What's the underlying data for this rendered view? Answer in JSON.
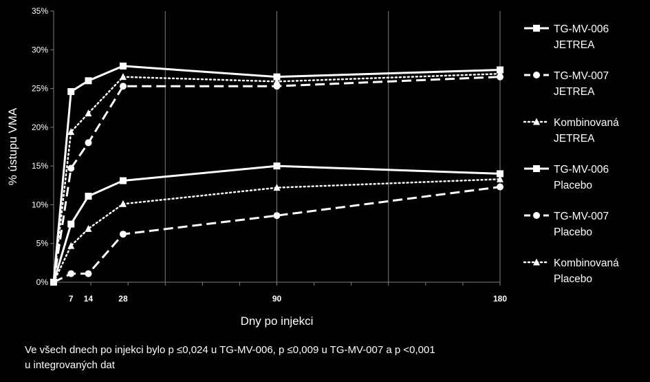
{
  "chart_data": {
    "type": "line",
    "xlabel": "Dny po injekci",
    "ylabel": "% ústupu VMA",
    "x_ticks": [
      7,
      14,
      28,
      90,
      180
    ],
    "xlim": [
      0,
      180
    ],
    "ylim": [
      0,
      35
    ],
    "y_ticks": [
      "0%",
      "5%",
      "10%",
      "15%",
      "20%",
      "25%",
      "30%",
      "35%"
    ],
    "grid": "vertical",
    "legend": "right",
    "series": [
      {
        "name": "TG-MV-006 JETREA",
        "line1": "TG-MV-006",
        "line2": "JETREA",
        "style": "solid",
        "marker": "square",
        "points": [
          [
            0,
            0
          ],
          [
            7,
            24.6
          ],
          [
            14,
            26.0
          ],
          [
            28,
            27.9
          ],
          [
            90,
            26.5
          ],
          [
            180,
            27.4
          ]
        ]
      },
      {
        "name": "TG-MV-007 JETREA",
        "line1": "TG-MV-007",
        "line2": "JETREA",
        "style": "dashed",
        "marker": "circle",
        "points": [
          [
            0,
            0
          ],
          [
            7,
            14.7
          ],
          [
            14,
            18.0
          ],
          [
            28,
            25.3
          ],
          [
            90,
            25.3
          ],
          [
            180,
            26.5
          ]
        ]
      },
      {
        "name": "Kombinovaná JETREA",
        "line1": "Kombinovaná",
        "line2": "JETREA",
        "style": "dotted",
        "marker": "triangle",
        "points": [
          [
            0,
            0
          ],
          [
            7,
            19.4
          ],
          [
            14,
            21.8
          ],
          [
            28,
            26.5
          ],
          [
            90,
            25.9
          ],
          [
            180,
            26.9
          ]
        ]
      },
      {
        "name": "TG-MV-006 Placebo",
        "line1": "TG-MV-006",
        "line2": "Placebo",
        "style": "solid",
        "marker": "square",
        "points": [
          [
            0,
            0
          ],
          [
            7,
            7.5
          ],
          [
            14,
            11.1
          ],
          [
            28,
            13.1
          ],
          [
            90,
            15.0
          ],
          [
            180,
            14.0
          ]
        ]
      },
      {
        "name": "TG-MV-007 Placebo",
        "line1": "TG-MV-007",
        "line2": "Placebo",
        "style": "dashed",
        "marker": "circle",
        "points": [
          [
            0,
            0
          ],
          [
            7,
            1.1
          ],
          [
            14,
            1.1
          ],
          [
            28,
            6.2
          ],
          [
            90,
            8.6
          ],
          [
            180,
            12.3
          ]
        ]
      },
      {
        "name": "Kombinovaná Placebo",
        "line1": "Kombinovaná",
        "line2": "Placebo",
        "style": "dotted",
        "marker": "triangle",
        "points": [
          [
            0,
            0
          ],
          [
            7,
            4.7
          ],
          [
            14,
            6.9
          ],
          [
            28,
            10.1
          ],
          [
            90,
            12.2
          ],
          [
            180,
            13.3
          ]
        ]
      }
    ],
    "colors": {
      "line": "#ffffff",
      "background": "#000000",
      "grid": "#7f7f7f"
    }
  },
  "footnote": {
    "line1": "Ve všech dnech po injekci bylo p ≤0,024 u TG-MV-006, p ≤0,009 u TG-MV-007 a p <0,001",
    "line2": "u integrovaných dat"
  }
}
